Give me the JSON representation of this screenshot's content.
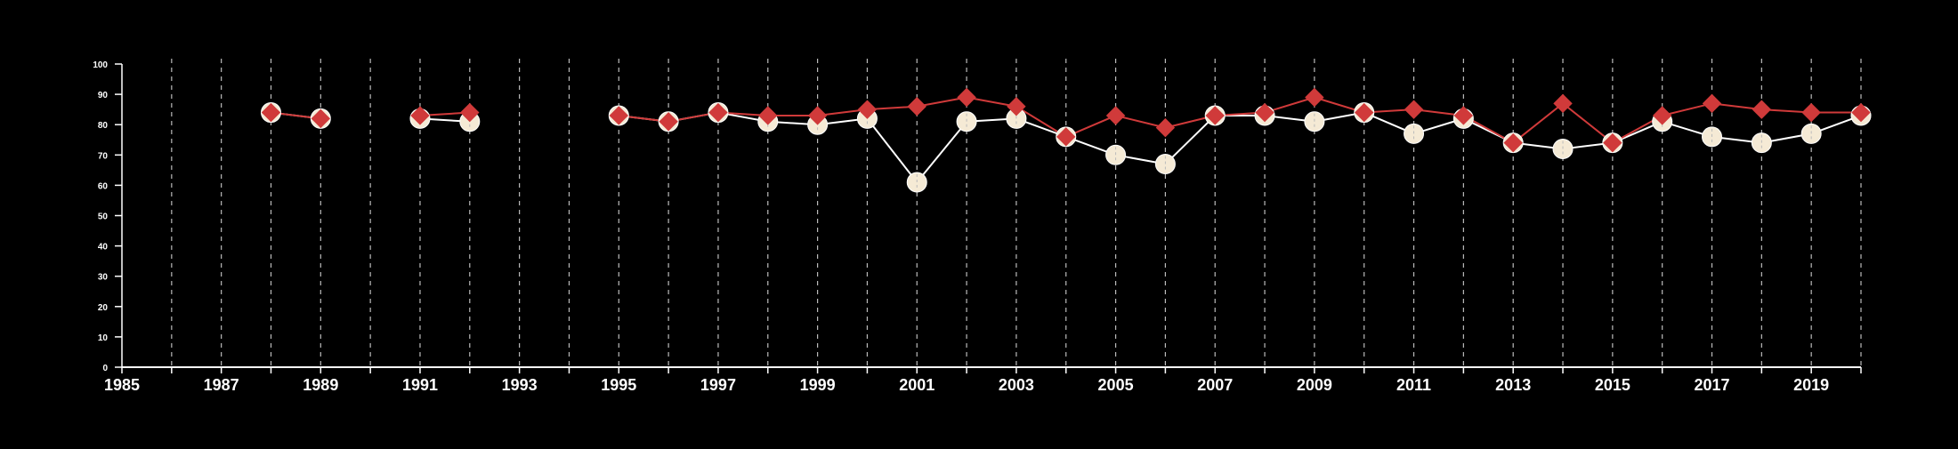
{
  "chart_data": {
    "type": "line",
    "title": "",
    "xlabel": "",
    "ylabel": "",
    "xlim": [
      1985,
      2020
    ],
    "ylim": [
      0,
      100
    ],
    "y_ticks": [
      0,
      10,
      20,
      30,
      40,
      50,
      60,
      70,
      80,
      90,
      100
    ],
    "x_tick_labels": [
      "1985",
      "1987",
      "1989",
      "1991",
      "1993",
      "1995",
      "1997",
      "1999",
      "2001",
      "2003",
      "2005",
      "2007",
      "2009",
      "2011",
      "2013",
      "2015",
      "2017",
      "2019"
    ],
    "vertical_gridlines": "dashed, every year",
    "colors": {
      "background": "#000000",
      "axis": "#ffffff",
      "grid": "#bbbbbb"
    },
    "series": [
      {
        "marker": "circle",
        "color": "#f5ead5",
        "line_color": "#ffffff",
        "x": [
          1988,
          1989,
          1991,
          1992,
          1995,
          1996,
          1997,
          1998,
          1999,
          2000,
          2001,
          2002,
          2003,
          2004,
          2005,
          2006,
          2007,
          2008,
          2009,
          2010,
          2011,
          2012,
          2013,
          2014,
          2015,
          2016,
          2017,
          2018,
          2019,
          2020
        ],
        "values": [
          84,
          82,
          82,
          81,
          83,
          81,
          84,
          81,
          80,
          82,
          61,
          81,
          82,
          76,
          70,
          67,
          83,
          83,
          81,
          84,
          77,
          82,
          74,
          72,
          74,
          81,
          76,
          74,
          77,
          83
        ]
      },
      {
        "marker": "diamond",
        "color": "#d03a3a",
        "line_color": "#d03a3a",
        "x": [
          1988,
          1989,
          1991,
          1992,
          1995,
          1996,
          1997,
          1998,
          1999,
          2000,
          2001,
          2002,
          2003,
          2004,
          2005,
          2006,
          2007,
          2008,
          2009,
          2010,
          2011,
          2012,
          2013,
          2014,
          2015,
          2016,
          2017,
          2018,
          2019,
          2020
        ],
        "values": [
          84,
          82,
          83,
          84,
          83,
          81,
          84,
          83,
          83,
          85,
          86,
          89,
          86,
          76,
          83,
          79,
          83,
          84,
          89,
          84,
          85,
          83,
          74,
          87,
          74,
          83,
          87,
          85,
          84,
          84
        ]
      }
    ]
  }
}
